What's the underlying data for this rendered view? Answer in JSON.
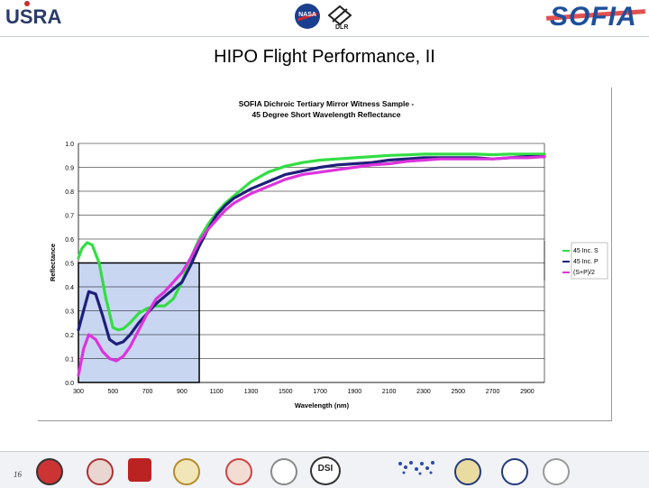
{
  "header": {
    "left_logo": "USRA",
    "center_logo_1": "NASA",
    "center_logo_2": "DLR",
    "right_logo": "SOFIA"
  },
  "slide": {
    "title": "HIPO Flight Performance, II",
    "page_number": "16"
  },
  "colors": {
    "s_series": "#33dd44",
    "p_series": "#1f1f7a",
    "avg_series": "#dd33dd",
    "box_fill": "#c8d6f2"
  },
  "chart_data": {
    "type": "line",
    "title_line1": "SOFIA Dichroic Tertiary Mirror Witness Sample -",
    "title_line2": "45 Degree Short Wavelength Reflectance",
    "xlabel": "Wavelength (nm)",
    "ylabel": "Reflectance",
    "xlim": [
      300,
      3000
    ],
    "ylim": [
      0.0,
      1.0
    ],
    "x_ticks": [
      "300",
      "500",
      "700",
      "900",
      "1100",
      "1300",
      "1500",
      "1700",
      "1900",
      "2100",
      "2300",
      "2500",
      "2700",
      "2900"
    ],
    "y_ticks": [
      "0.0",
      "0.1",
      "0.2",
      "0.3",
      "0.4",
      "0.5",
      "0.6",
      "0.7",
      "0.8",
      "0.9",
      "1.0"
    ],
    "highlight_box": {
      "x0": 300,
      "x1": 1000,
      "y0": 0.0,
      "y1": 0.5
    },
    "series": [
      {
        "name": "45 Inc. S",
        "color": "#33dd44",
        "x": [
          300,
          320,
          350,
          380,
          420,
          460,
          500,
          530,
          560,
          600,
          650,
          700,
          750,
          800,
          850,
          900,
          950,
          1000,
          1050,
          1100,
          1150,
          1200,
          1250,
          1300,
          1400,
          1500,
          1600,
          1700,
          1800,
          1900,
          2000,
          2100,
          2200,
          2300,
          2400,
          2500,
          2600,
          2700,
          2800,
          2900,
          3000
        ],
        "y": [
          0.52,
          0.56,
          0.585,
          0.575,
          0.5,
          0.35,
          0.23,
          0.22,
          0.225,
          0.25,
          0.29,
          0.31,
          0.32,
          0.32,
          0.35,
          0.42,
          0.52,
          0.6,
          0.66,
          0.71,
          0.75,
          0.78,
          0.81,
          0.84,
          0.88,
          0.905,
          0.92,
          0.93,
          0.935,
          0.94,
          0.945,
          0.95,
          0.952,
          0.955,
          0.955,
          0.955,
          0.955,
          0.953,
          0.955,
          0.955,
          0.955
        ]
      },
      {
        "name": "45 Inc. P",
        "color": "#1f1f7a",
        "x": [
          300,
          330,
          360,
          400,
          440,
          480,
          520,
          560,
          600,
          650,
          700,
          750,
          800,
          850,
          900,
          950,
          1000,
          1050,
          1100,
          1150,
          1200,
          1250,
          1300,
          1400,
          1500,
          1600,
          1700,
          1800,
          1900,
          2000,
          2100,
          2200,
          2300,
          2400,
          2500,
          2600,
          2700,
          2800,
          2900,
          3000
        ],
        "y": [
          0.22,
          0.3,
          0.38,
          0.37,
          0.28,
          0.18,
          0.16,
          0.17,
          0.2,
          0.25,
          0.29,
          0.33,
          0.36,
          0.39,
          0.42,
          0.49,
          0.57,
          0.64,
          0.7,
          0.74,
          0.77,
          0.79,
          0.81,
          0.84,
          0.87,
          0.885,
          0.9,
          0.91,
          0.915,
          0.92,
          0.93,
          0.935,
          0.94,
          0.94,
          0.94,
          0.94,
          0.935,
          0.94,
          0.945,
          0.945
        ]
      },
      {
        "name": "(S+P)/2",
        "color": "#dd33dd",
        "x": [
          300,
          330,
          360,
          400,
          440,
          480,
          520,
          560,
          600,
          650,
          700,
          750,
          800,
          850,
          900,
          950,
          1000,
          1050,
          1100,
          1150,
          1200,
          1250,
          1300,
          1400,
          1500,
          1600,
          1700,
          1800,
          1900,
          2000,
          2100,
          2200,
          2300,
          2400,
          2500,
          2600,
          2700,
          2800,
          2900,
          3000
        ],
        "y": [
          0.03,
          0.14,
          0.2,
          0.18,
          0.13,
          0.1,
          0.09,
          0.11,
          0.15,
          0.22,
          0.29,
          0.35,
          0.38,
          0.42,
          0.46,
          0.52,
          0.59,
          0.64,
          0.68,
          0.72,
          0.75,
          0.77,
          0.79,
          0.82,
          0.85,
          0.87,
          0.88,
          0.89,
          0.9,
          0.91,
          0.915,
          0.925,
          0.93,
          0.935,
          0.935,
          0.935,
          0.935,
          0.94,
          0.94,
          0.945
        ]
      }
    ]
  }
}
